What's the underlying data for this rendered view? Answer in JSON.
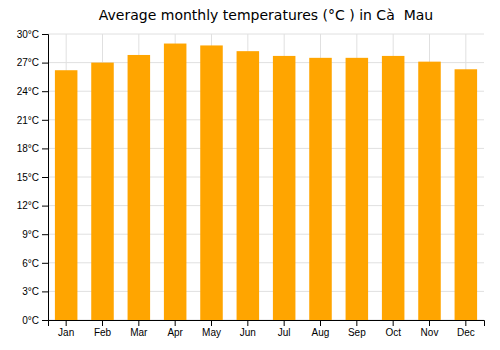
{
  "chart_data": {
    "type": "bar",
    "title": "Average monthly temperatures (°C ) in Cà  Mau",
    "categories": [
      "Jan",
      "Feb",
      "Mar",
      "Apr",
      "May",
      "Jun",
      "Jul",
      "Aug",
      "Sep",
      "Oct",
      "Nov",
      "Dec"
    ],
    "values": [
      26.2,
      27.0,
      27.8,
      29.0,
      28.8,
      28.2,
      27.7,
      27.5,
      27.5,
      27.7,
      27.1,
      26.3
    ],
    "color": "#FFA500",
    "ylim": [
      0,
      30
    ],
    "yticks": [
      {
        "value": 0,
        "label": "0°C"
      },
      {
        "value": 3,
        "label": "3°C"
      },
      {
        "value": 6,
        "label": "6°C"
      },
      {
        "value": 9,
        "label": "9°C"
      },
      {
        "value": 12,
        "label": "12°C"
      },
      {
        "value": 15,
        "label": "15°C"
      },
      {
        "value": 18,
        "label": "18°C"
      },
      {
        "value": 21,
        "label": "21°C"
      },
      {
        "value": 24,
        "label": "24°C"
      },
      {
        "value": 27,
        "label": "27°C"
      },
      {
        "value": 30,
        "label": "30°C"
      }
    ],
    "grid": true
  }
}
